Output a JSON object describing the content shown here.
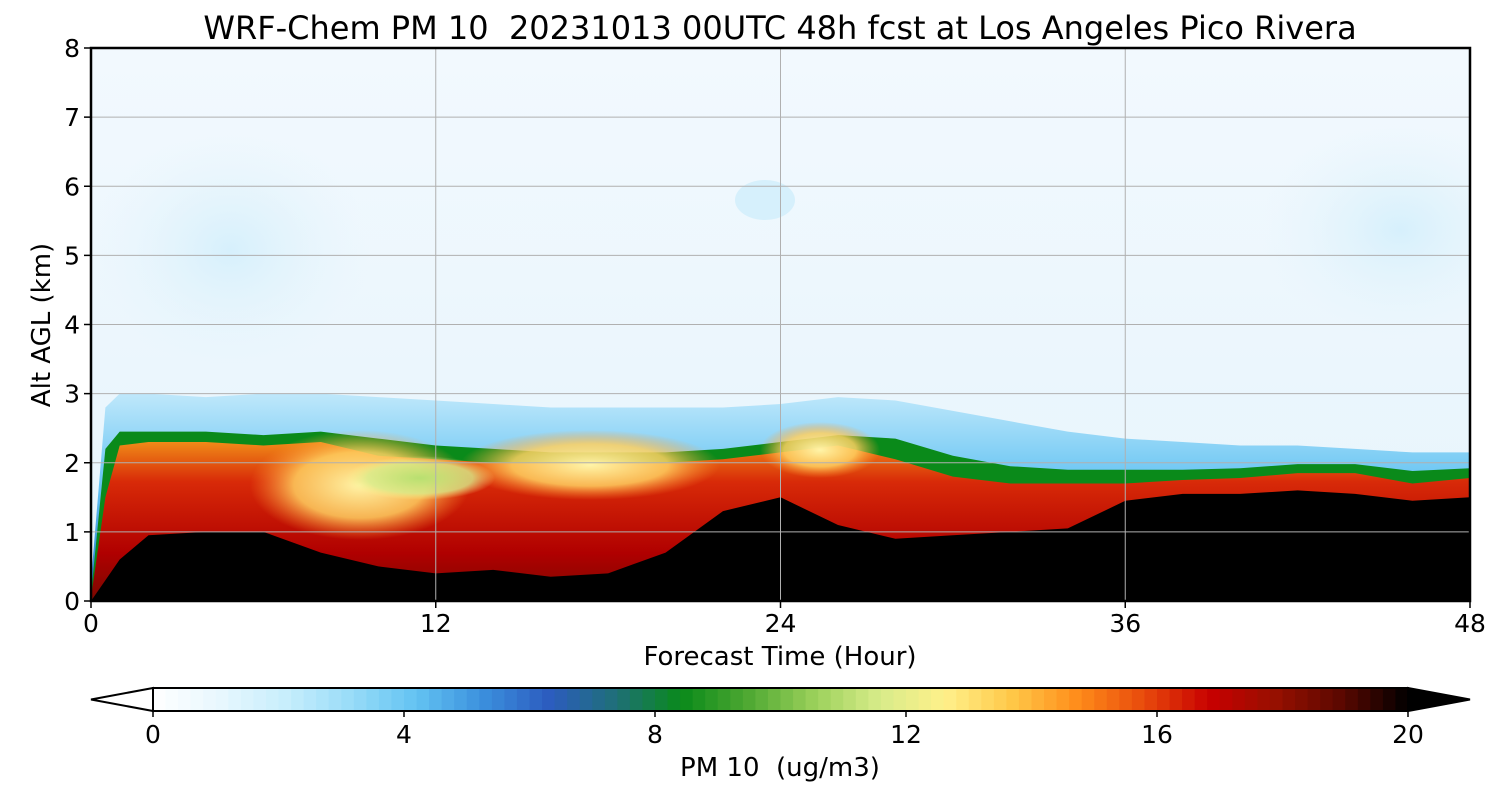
{
  "chart_data": {
    "type": "heatmap",
    "title": "WRF-Chem PM 10  20231013 00UTC 48h fcst at Los Angeles Pico Rivera",
    "xlabel": "Forecast Time (Hour)",
    "ylabel": "Alt AGL (km)",
    "xlim": [
      0,
      48
    ],
    "ylim": [
      0,
      8
    ],
    "x_ticks": [
      "0",
      "12",
      "24",
      "36",
      "48"
    ],
    "y_ticks": [
      "0",
      "1",
      "2",
      "3",
      "4",
      "5",
      "6",
      "7",
      "8"
    ],
    "grid": true,
    "colorbar": {
      "label": "PM 10  (ug/m3)",
      "range": [
        0,
        20
      ],
      "ticks": [
        "0",
        "4",
        "8",
        "12",
        "16",
        "20"
      ],
      "extend": "both",
      "colors": [
        "#ffffff",
        "#e8f7fe",
        "#c8eefc",
        "#98dcf8",
        "#62c2f2",
        "#3b8fdd",
        "#2c5cbf",
        "#1f6f78",
        "#0a8a1a",
        "#4ea832",
        "#9ad05a",
        "#d8ec8a",
        "#fff08a",
        "#ffc848",
        "#ff8c1a",
        "#e84a0c",
        "#c80000",
        "#961000",
        "#5a0800",
        "#000000"
      ]
    },
    "profile_hours": [
      0,
      0.5,
      1,
      2,
      4,
      6,
      8,
      10,
      12,
      14,
      16,
      18,
      20,
      22,
      24,
      26,
      28,
      30,
      32,
      34,
      36,
      38,
      40,
      42,
      44,
      46,
      48
    ],
    "mixing_top_km": [
      0.05,
      1.5,
      2.25,
      2.3,
      2.3,
      2.25,
      2.3,
      2.1,
      2.05,
      2.0,
      2.0,
      2.0,
      2.0,
      2.05,
      2.15,
      2.25,
      2.05,
      1.8,
      1.7,
      1.7,
      1.7,
      1.75,
      1.78,
      1.85,
      1.85,
      1.7,
      1.78
    ],
    "green_band_km": [
      0.1,
      2.2,
      2.45,
      2.45,
      2.45,
      2.4,
      2.45,
      2.35,
      2.25,
      2.2,
      2.15,
      2.15,
      2.15,
      2.2,
      2.3,
      2.4,
      2.35,
      2.1,
      1.95,
      1.9,
      1.9,
      1.9,
      1.92,
      1.98,
      1.98,
      1.88,
      1.92
    ],
    "plume_top_km": [
      0.3,
      2.8,
      3.0,
      3.0,
      2.95,
      3.0,
      3.0,
      2.95,
      2.9,
      2.85,
      2.8,
      2.8,
      2.8,
      2.8,
      2.85,
      2.95,
      2.9,
      2.75,
      2.6,
      2.45,
      2.35,
      2.3,
      2.25,
      2.25,
      2.2,
      2.15,
      2.15
    ],
    "dark_core_top_km": [
      0.0,
      0.3,
      0.6,
      0.95,
      1.0,
      1.0,
      0.7,
      0.5,
      0.4,
      0.45,
      0.35,
      0.4,
      0.7,
      1.3,
      1.5,
      1.1,
      0.9,
      0.95,
      1.0,
      1.05,
      1.45,
      1.55,
      1.55,
      1.6,
      1.55,
      1.45,
      1.5
    ]
  }
}
